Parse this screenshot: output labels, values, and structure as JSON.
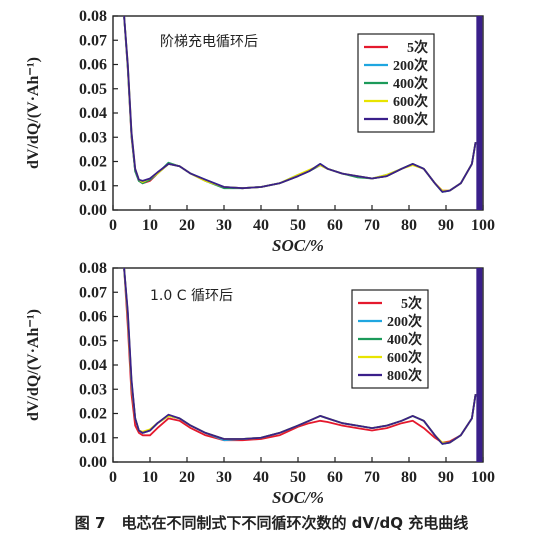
{
  "caption": {
    "figure_no": "图 7",
    "text": "电芯在不同制式下不同循环次数的 dV/dQ 充电曲线"
  },
  "colors": {
    "5次": "#e4192d",
    "200次": "#1fa6e0",
    "400次": "#1c9a5a",
    "600次": "#e8e400",
    "800次": "#3a1f8a"
  },
  "chart_data": [
    {
      "type": "line",
      "annotation": "阶梯充电循环后",
      "xlabel": "SOC/%",
      "ylabel": "dV/dQ/(V·Ah⁻¹)",
      "xlim": [
        0,
        100
      ],
      "ylim": [
        0,
        0.08
      ],
      "xticks": [
        "0",
        "10",
        "20",
        "30",
        "40",
        "50",
        "60",
        "70",
        "80",
        "90",
        "100"
      ],
      "yticks": [
        "0.00",
        "0.01",
        "0.02",
        "0.03",
        "0.04",
        "0.05",
        "0.06",
        "0.07",
        "0.08"
      ],
      "x": [
        3,
        4,
        5,
        6,
        7,
        8,
        10,
        12,
        15,
        18,
        21,
        25,
        30,
        35,
        40,
        45,
        50,
        53,
        56,
        58,
        62,
        66,
        70,
        74,
        78,
        81,
        84,
        87,
        89,
        91,
        94,
        97,
        98
      ],
      "series": [
        {
          "name": "5次",
          "values": [
            0.08,
            0.058,
            0.03,
            0.016,
            0.012,
            0.011,
            0.012,
            0.015,
            0.019,
            0.018,
            0.015,
            0.012,
            0.0095,
            0.009,
            0.0095,
            0.011,
            0.014,
            0.016,
            0.0185,
            0.017,
            0.015,
            0.014,
            0.013,
            0.014,
            0.017,
            0.019,
            0.017,
            0.011,
            0.008,
            0.008,
            0.011,
            0.019,
            0.028
          ]
        },
        {
          "name": "200次",
          "values": [
            0.08,
            0.059,
            0.031,
            0.016,
            0.012,
            0.0115,
            0.0125,
            0.015,
            0.019,
            0.018,
            0.015,
            0.0125,
            0.0095,
            0.009,
            0.0095,
            0.011,
            0.0145,
            0.016,
            0.019,
            0.017,
            0.015,
            0.014,
            0.013,
            0.0145,
            0.017,
            0.019,
            0.017,
            0.011,
            0.0075,
            0.008,
            0.011,
            0.019,
            0.028
          ]
        },
        {
          "name": "400次",
          "values": [
            0.08,
            0.059,
            0.031,
            0.016,
            0.012,
            0.011,
            0.0125,
            0.015,
            0.0195,
            0.018,
            0.015,
            0.012,
            0.009,
            0.009,
            0.0095,
            0.011,
            0.014,
            0.016,
            0.0185,
            0.017,
            0.015,
            0.0135,
            0.013,
            0.014,
            0.017,
            0.019,
            0.017,
            0.011,
            0.0075,
            0.008,
            0.011,
            0.019,
            0.028
          ]
        },
        {
          "name": "600次",
          "values": [
            0.08,
            0.06,
            0.032,
            0.017,
            0.0125,
            0.0115,
            0.013,
            0.015,
            0.019,
            0.018,
            0.015,
            0.012,
            0.0095,
            0.009,
            0.0095,
            0.011,
            0.0145,
            0.0165,
            0.0185,
            0.017,
            0.015,
            0.014,
            0.013,
            0.0145,
            0.017,
            0.0185,
            0.017,
            0.011,
            0.008,
            0.008,
            0.011,
            0.019,
            0.028
          ]
        },
        {
          "name": "800次",
          "values": [
            0.08,
            0.06,
            0.032,
            0.017,
            0.0125,
            0.012,
            0.013,
            0.0155,
            0.019,
            0.018,
            0.015,
            0.0125,
            0.0095,
            0.009,
            0.0095,
            0.011,
            0.014,
            0.016,
            0.019,
            0.017,
            0.015,
            0.014,
            0.013,
            0.014,
            0.017,
            0.019,
            0.017,
            0.011,
            0.0075,
            0.008,
            0.011,
            0.019,
            0.028
          ]
        }
      ]
    },
    {
      "type": "line",
      "annotation": "1.0 C 循环后",
      "xlabel": "SOC/%",
      "ylabel": "dV/dQ/(V·Ah⁻¹)",
      "xlim": [
        0,
        100
      ],
      "ylim": [
        0,
        0.08
      ],
      "xticks": [
        "0",
        "10",
        "20",
        "30",
        "40",
        "50",
        "60",
        "70",
        "80",
        "90",
        "100"
      ],
      "yticks": [
        "0.00",
        "0.01",
        "0.02",
        "0.03",
        "0.04",
        "0.05",
        "0.06",
        "0.07",
        "0.08"
      ],
      "x": [
        3,
        4,
        5,
        6,
        7,
        8,
        10,
        12,
        15,
        18,
        21,
        25,
        30,
        35,
        40,
        45,
        50,
        53,
        56,
        58,
        62,
        66,
        70,
        74,
        78,
        81,
        84,
        87,
        89,
        91,
        94,
        97,
        98
      ],
      "series": [
        {
          "name": "5次",
          "values": [
            0.08,
            0.056,
            0.028,
            0.015,
            0.012,
            0.011,
            0.011,
            0.014,
            0.018,
            0.017,
            0.014,
            0.011,
            0.009,
            0.009,
            0.0095,
            0.011,
            0.0145,
            0.016,
            0.017,
            0.0165,
            0.015,
            0.014,
            0.013,
            0.014,
            0.016,
            0.017,
            0.014,
            0.01,
            0.008,
            0.0085,
            0.011,
            0.018,
            0.028
          ]
        },
        {
          "name": "200次",
          "values": [
            0.08,
            0.06,
            0.032,
            0.018,
            0.013,
            0.012,
            0.013,
            0.016,
            0.019,
            0.018,
            0.015,
            0.012,
            0.009,
            0.0095,
            0.01,
            0.012,
            0.015,
            0.017,
            0.019,
            0.018,
            0.016,
            0.015,
            0.014,
            0.015,
            0.017,
            0.019,
            0.017,
            0.011,
            0.0075,
            0.008,
            0.011,
            0.018,
            0.028
          ]
        },
        {
          "name": "400次",
          "values": [
            0.08,
            0.061,
            0.033,
            0.018,
            0.013,
            0.012,
            0.013,
            0.016,
            0.019,
            0.018,
            0.015,
            0.012,
            0.0095,
            0.0095,
            0.01,
            0.012,
            0.015,
            0.017,
            0.019,
            0.018,
            0.016,
            0.015,
            0.014,
            0.015,
            0.017,
            0.019,
            0.017,
            0.011,
            0.0075,
            0.008,
            0.011,
            0.018,
            0.028
          ]
        },
        {
          "name": "600次",
          "values": [
            0.08,
            0.061,
            0.033,
            0.018,
            0.013,
            0.0125,
            0.0135,
            0.016,
            0.019,
            0.018,
            0.015,
            0.012,
            0.0095,
            0.0095,
            0.01,
            0.012,
            0.015,
            0.017,
            0.019,
            0.018,
            0.016,
            0.015,
            0.014,
            0.015,
            0.017,
            0.019,
            0.017,
            0.011,
            0.008,
            0.008,
            0.011,
            0.018,
            0.028
          ]
        },
        {
          "name": "800次",
          "values": [
            0.08,
            0.062,
            0.034,
            0.018,
            0.013,
            0.012,
            0.013,
            0.016,
            0.0195,
            0.018,
            0.015,
            0.012,
            0.0095,
            0.0095,
            0.01,
            0.012,
            0.015,
            0.017,
            0.019,
            0.018,
            0.016,
            0.015,
            0.014,
            0.015,
            0.017,
            0.019,
            0.017,
            0.011,
            0.0075,
            0.008,
            0.011,
            0.018,
            0.028
          ]
        }
      ]
    }
  ]
}
